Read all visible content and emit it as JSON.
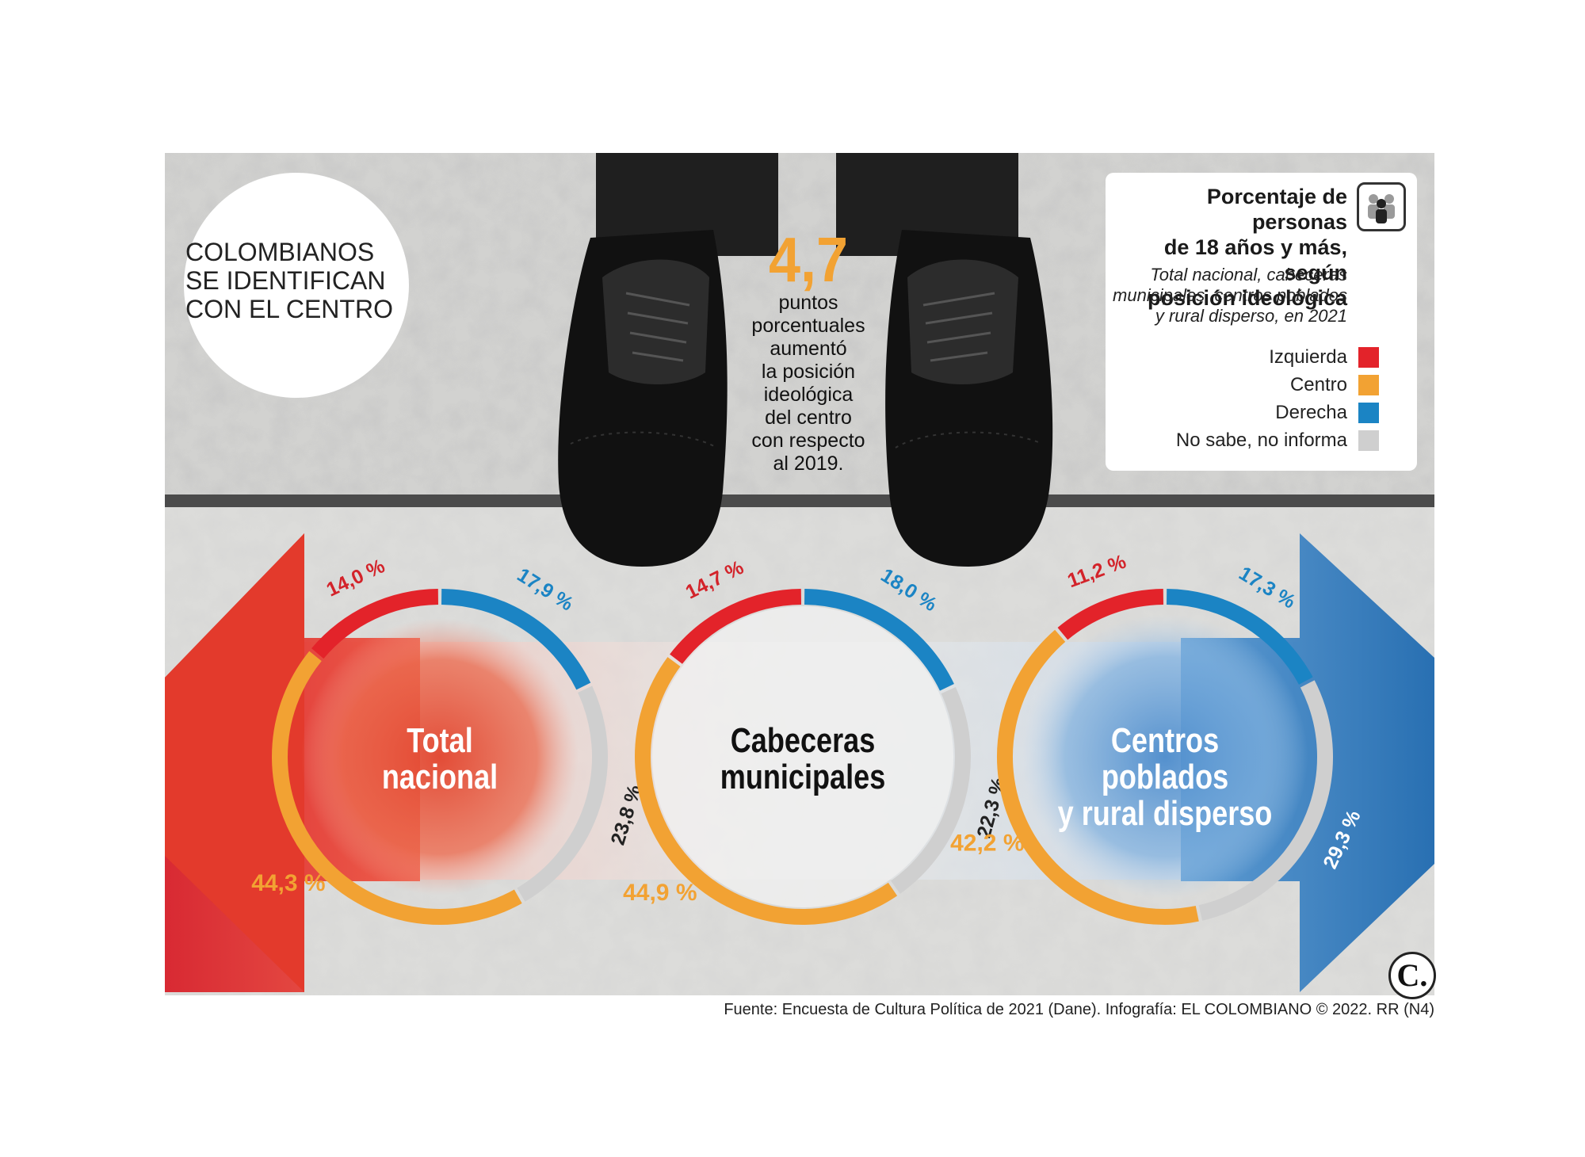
{
  "headline": [
    "COLOMBIANOS",
    "SE IDENTIFICAN",
    "CON EL CENTRO"
  ],
  "highlight": {
    "value": "4,7",
    "text": [
      "puntos",
      "porcentuales",
      "aumentó",
      "la posición",
      "ideológica",
      "del centro",
      "con respecto",
      "al 2019."
    ]
  },
  "legend": {
    "title": [
      "Porcentaje de personas",
      "de 18 años y más, según",
      "posición ideológica"
    ],
    "subtitle": [
      "Total nacional, cabeceras",
      "municipales, centros poblados",
      "y rural disperso, en 2021"
    ],
    "icon": "people-icon",
    "items": [
      {
        "label": "Izquierda",
        "color": "#e3232a"
      },
      {
        "label": "Centro",
        "color": "#f2a233"
      },
      {
        "label": "Derecha",
        "color": "#1b84c4"
      },
      {
        "label": "No sabe, no informa",
        "color": "#cfcfcf"
      }
    ]
  },
  "chart_data": {
    "type": "donut",
    "series_names": [
      "Izquierda",
      "Centro",
      "Derecha",
      "No sabe, no informa"
    ],
    "colors": {
      "Izquierda": "#e3232a",
      "Centro": "#f2a233",
      "Derecha": "#1b84c4",
      "No sabe, no informa": "#cfcfcf"
    },
    "charts": [
      {
        "title": [
          "Total",
          "nacional"
        ],
        "values": {
          "Izquierda": 14.0,
          "Derecha": 17.9,
          "No sabe, no informa": 23.8,
          "Centro": 44.3
        },
        "labels": {
          "Izquierda": "14,0 %",
          "Derecha": "17,9 %",
          "No sabe, no informa": "23,8 %",
          "Centro": "44,3 %"
        }
      },
      {
        "title": [
          "Cabeceras",
          "municipales"
        ],
        "values": {
          "Izquierda": 14.7,
          "Derecha": 18.0,
          "No sabe, no informa": 22.3,
          "Centro": 44.9
        },
        "labels": {
          "Izquierda": "14,7 %",
          "Derecha": "18,0 %",
          "No sabe, no informa": "22,3 %",
          "Centro": "44,9 %"
        }
      },
      {
        "title": [
          "Centros poblados",
          "y rural disperso"
        ],
        "values": {
          "Izquierda": 11.2,
          "Derecha": 17.3,
          "No sabe, no informa": 29.3,
          "Centro": 42.2
        },
        "labels": {
          "Izquierda": "11,2 %",
          "Derecha": "17,3 %",
          "No sabe, no informa": "29,3 %",
          "Centro": "42,2 %"
        }
      }
    ]
  },
  "source": "Fuente: Encuesta de Cultura Política de 2021 (Dane). Infografía: EL COLOMBIANO © 2022. RR (N4)",
  "logo_text": "C."
}
